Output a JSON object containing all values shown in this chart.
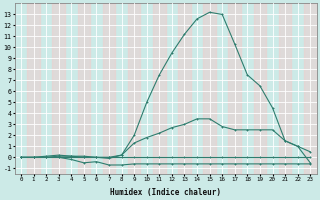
{
  "xlabel": "Humidex (Indice chaleur)",
  "x": [
    0,
    1,
    2,
    3,
    4,
    5,
    6,
    7,
    8,
    9,
    10,
    11,
    12,
    13,
    14,
    15,
    16,
    17,
    18,
    19,
    20,
    21,
    22,
    23
  ],
  "line1": [
    0,
    0,
    0,
    0,
    0,
    0,
    0,
    0,
    0,
    0,
    0,
    0,
    0,
    0,
    0,
    0,
    0,
    0,
    0,
    0,
    0,
    0,
    0,
    0
  ],
  "line2": [
    0,
    0,
    0,
    0,
    -0.2,
    -0.5,
    -0.4,
    -0.7,
    -0.7,
    -0.6,
    -0.6,
    -0.6,
    -0.6,
    -0.6,
    -0.6,
    -0.6,
    -0.6,
    -0.6,
    -0.6,
    -0.6,
    -0.6,
    -0.6,
    -0.6,
    -0.6
  ],
  "line3": [
    0,
    0,
    0.0,
    0.1,
    0.1,
    0.1,
    0.0,
    0.0,
    0.2,
    1.3,
    1.8,
    2.2,
    2.7,
    3.0,
    3.5,
    3.5,
    2.8,
    2.5,
    2.5,
    2.5,
    2.5,
    1.5,
    1.0,
    0.5
  ],
  "line4": [
    0,
    0,
    0.1,
    0.2,
    0.1,
    0.0,
    0.0,
    -0.1,
    0.2,
    2.0,
    5.0,
    7.5,
    9.5,
    11.2,
    12.6,
    13.2,
    13.0,
    10.3,
    7.5,
    6.5,
    4.5,
    1.5,
    1.0,
    -0.5
  ],
  "bg_color": "#cceae7",
  "grid_main_color": "#ffffff",
  "grid_sub_color": "#f5c8c8",
  "line_color": "#2e7d6e",
  "ylim": [
    -1.5,
    14
  ],
  "xlim": [
    -0.5,
    23.5
  ],
  "yticks": [
    -1,
    0,
    1,
    2,
    3,
    4,
    5,
    6,
    7,
    8,
    9,
    10,
    11,
    12,
    13
  ],
  "xticks": [
    0,
    1,
    2,
    3,
    4,
    5,
    6,
    7,
    8,
    9,
    10,
    11,
    12,
    13,
    14,
    15,
    16,
    17,
    18,
    19,
    20,
    21,
    22,
    23
  ]
}
